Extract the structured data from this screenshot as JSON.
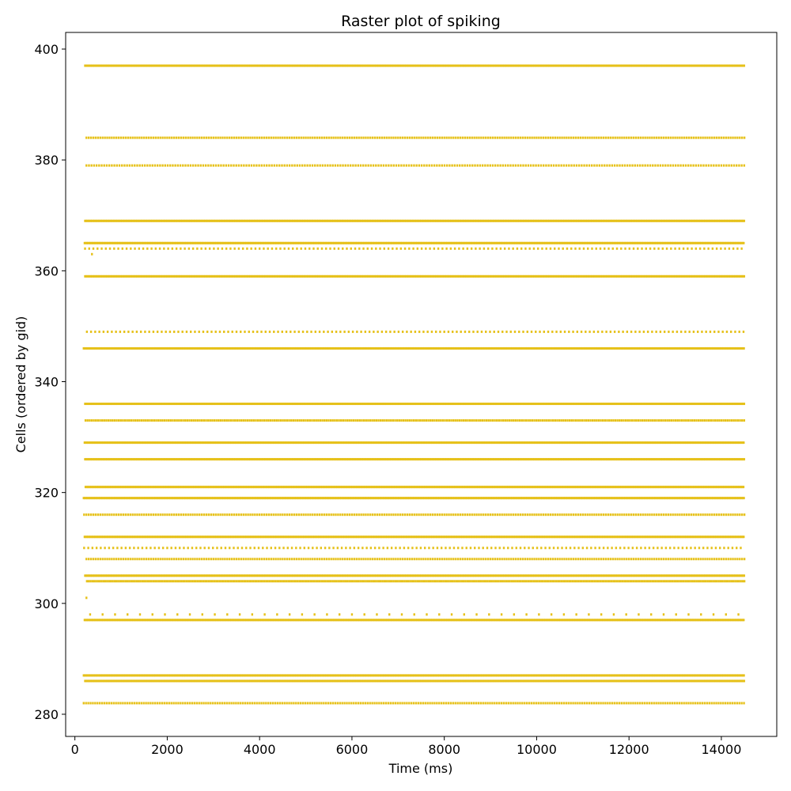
{
  "chart_data": {
    "type": "scatter",
    "title": "Raster plot of spiking",
    "xlabel": "Time (ms)",
    "ylabel": "Cells (ordered by gid)",
    "xlim": [
      -200,
      15200
    ],
    "ylim": [
      276,
      403
    ],
    "xticks": [
      0,
      2000,
      4000,
      6000,
      8000,
      10000,
      12000,
      14000
    ],
    "yticks": [
      280,
      300,
      320,
      340,
      360,
      380,
      400
    ],
    "grid": false,
    "marker_color": "#e6c11a",
    "time_end": 14500,
    "trains": [
      {
        "gid": 397,
        "start": 220,
        "isi": 25
      },
      {
        "gid": 384,
        "start": 250,
        "isi": 50
      },
      {
        "gid": 379,
        "start": 250,
        "isi": 55
      },
      {
        "gid": 369,
        "start": 220,
        "isi": 25
      },
      {
        "gid": 365,
        "start": 210,
        "isi": 25
      },
      {
        "gid": 364,
        "start": 220,
        "isi": 90
      },
      {
        "gid": 359,
        "start": 220,
        "isi": 25
      },
      {
        "gid": 349,
        "start": 260,
        "isi": 90
      },
      {
        "gid": 346,
        "start": 190,
        "isi": 25
      },
      {
        "gid": 336,
        "start": 220,
        "isi": 25
      },
      {
        "gid": 333,
        "start": 230,
        "isi": 45
      },
      {
        "gid": 329,
        "start": 210,
        "isi": 25
      },
      {
        "gid": 326,
        "start": 220,
        "isi": 25
      },
      {
        "gid": 321,
        "start": 230,
        "isi": 25
      },
      {
        "gid": 319,
        "start": 190,
        "isi": 25
      },
      {
        "gid": 316,
        "start": 200,
        "isi": 50
      },
      {
        "gid": 312,
        "start": 210,
        "isi": 25
      },
      {
        "gid": 310,
        "start": 200,
        "isi": 90
      },
      {
        "gid": 308,
        "start": 250,
        "isi": 50
      },
      {
        "gid": 305,
        "start": 220,
        "isi": 25
      },
      {
        "gid": 304,
        "start": 260,
        "isi": 40
      },
      {
        "gid": 298,
        "start": 330,
        "isi": 270
      },
      {
        "gid": 297,
        "start": 210,
        "isi": 25
      },
      {
        "gid": 287,
        "start": 190,
        "isi": 25
      },
      {
        "gid": 286,
        "start": 220,
        "isi": 25
      },
      {
        "gid": 282,
        "start": 190,
        "isi": 50
      }
    ],
    "extra_spikes": [
      {
        "gid": 363,
        "t": 370
      },
      {
        "gid": 301,
        "t": 250
      }
    ]
  }
}
